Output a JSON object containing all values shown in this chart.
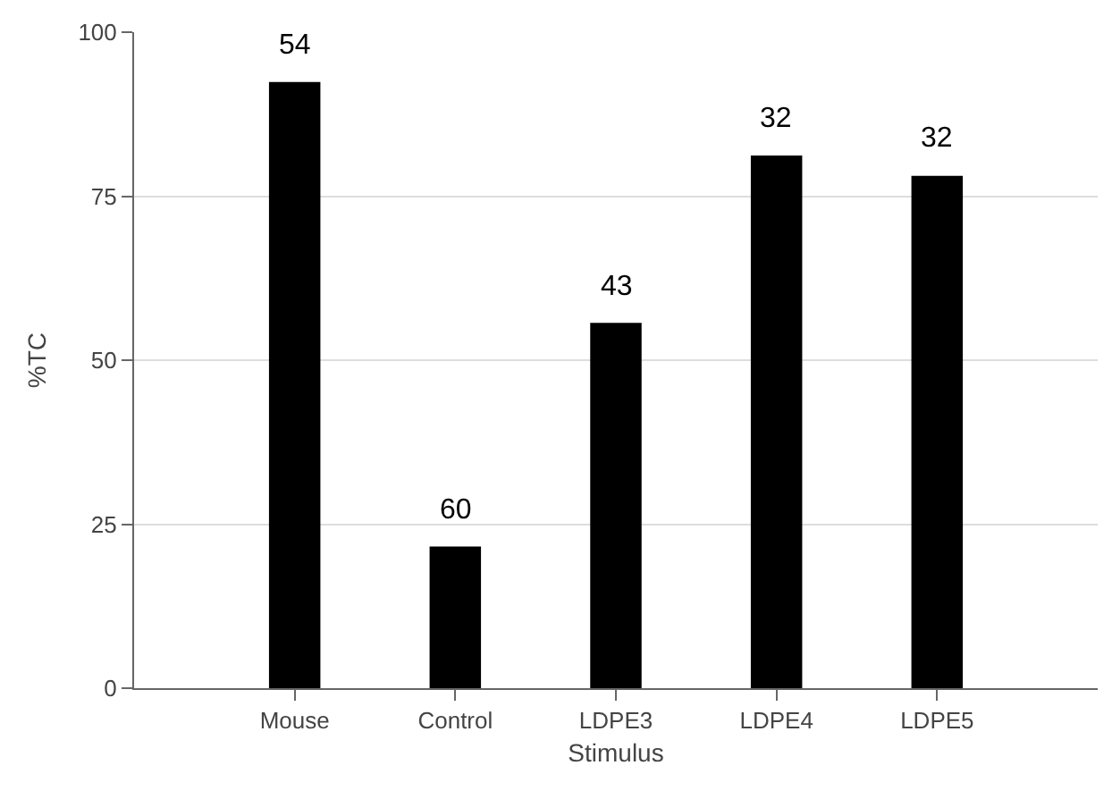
{
  "chart_data": {
    "type": "bar",
    "xlabel": "Stimulus",
    "ylabel": "%TC",
    "categories": [
      "Mouse",
      "Control",
      "LDPE3",
      "LDPE4",
      "LDPE5"
    ],
    "values": [
      92.4,
      21.6,
      55.7,
      81.2,
      78.1
    ],
    "annotations": [
      {
        "text": "54",
        "x": "Mouse",
        "y": 92.4
      },
      {
        "text": "60",
        "x": "Control",
        "y": 21.6
      },
      {
        "text": "43",
        "x": "LDPE3",
        "y": 55.7
      },
      {
        "text": "32",
        "x": "LDPE4",
        "y": 81.2
      },
      {
        "text": "32",
        "x": "LDPE5",
        "y": 78.1
      }
    ],
    "color": "#000000",
    "ylim": [
      0,
      100
    ],
    "yticks": [
      0,
      25,
      50,
      75,
      100
    ],
    "grid": "y",
    "legend": false
  }
}
